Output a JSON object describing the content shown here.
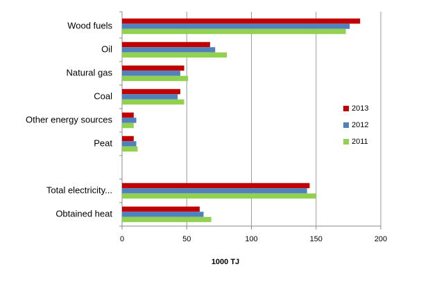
{
  "chart_data": {
    "type": "hbar",
    "categories": [
      "Wood fuels",
      "Oil",
      "Natural gas",
      "Coal",
      "Other energy sources",
      "Peat",
      null,
      "Total electricity...",
      "Obtained heat"
    ],
    "series": [
      {
        "name": "2013",
        "color": "#c00000",
        "values": [
          184,
          68,
          48,
          45,
          9,
          9,
          null,
          145,
          60
        ]
      },
      {
        "name": "2012",
        "color": "#4f81bd",
        "values": [
          176,
          72,
          45,
          43,
          11,
          11,
          null,
          143,
          63
        ]
      },
      {
        "name": "2011",
        "color": "#92d050",
        "values": [
          173,
          81,
          51,
          48,
          9,
          12,
          null,
          150,
          69
        ]
      }
    ],
    "x_label": "1000 TJ",
    "xlim": [
      0,
      200
    ],
    "xticks": [
      0,
      50,
      100,
      150,
      200
    ],
    "grid": true,
    "legend": "right"
  }
}
